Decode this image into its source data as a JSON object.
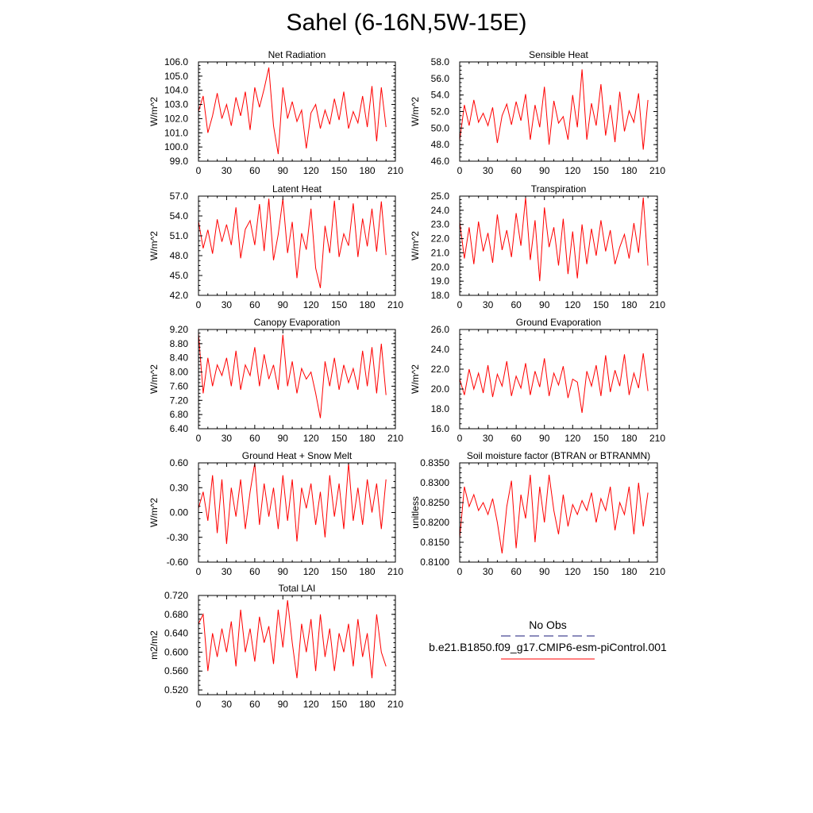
{
  "title": "Sahel (6-16N,5W-15E)",
  "chart_data": [
    {
      "type": "line",
      "title": "Net Radiation",
      "ylabel": "W/m^2",
      "xlim": [
        0,
        210
      ],
      "ylim": [
        99.0,
        106.0
      ],
      "xticks": [
        "0",
        "30",
        "60",
        "90",
        "120",
        "150",
        "180",
        "210"
      ],
      "yticks": [
        "99.0",
        "100.0",
        "101.0",
        "102.0",
        "103.0",
        "104.0",
        "105.0",
        "106.0"
      ],
      "series": [
        {
          "name": "b.e21.B1850.f09_g17.CMIP6-esm-piControl.001",
          "color": "#ff0000",
          "x": [
            0,
            5,
            10,
            15,
            20,
            25,
            30,
            35,
            40,
            45,
            50,
            55,
            60,
            65,
            70,
            75,
            80,
            85,
            90,
            95,
            100,
            105,
            110,
            115,
            120,
            125,
            130,
            135,
            140,
            145,
            150,
            155,
            160,
            165,
            170,
            175,
            180,
            185,
            190,
            195,
            200
          ],
          "values": [
            102.5,
            103.6,
            101.0,
            102.2,
            103.8,
            102.0,
            103.0,
            101.5,
            103.5,
            102.2,
            103.9,
            101.2,
            104.2,
            102.8,
            104.1,
            105.6,
            101.5,
            99.5,
            104.2,
            102.0,
            103.2,
            101.8,
            102.6,
            99.9,
            102.4,
            103.0,
            101.3,
            102.6,
            101.6,
            103.4,
            101.9,
            103.9,
            101.3,
            102.5,
            101.7,
            103.6,
            101.4,
            104.3,
            100.4,
            104.2,
            101.4
          ]
        }
      ]
    },
    {
      "type": "line",
      "title": "Sensible Heat",
      "ylabel": "W/m^2",
      "xlim": [
        0,
        210
      ],
      "ylim": [
        46.0,
        58.0
      ],
      "xticks": [
        "0",
        "30",
        "60",
        "90",
        "120",
        "150",
        "180",
        "210"
      ],
      "yticks": [
        "46.0",
        "48.0",
        "50.0",
        "52.0",
        "54.0",
        "56.0",
        "58.0"
      ],
      "series": [
        {
          "name": "b.e21.B1850.f09_g17.CMIP6-esm-piControl.001",
          "color": "#ff0000",
          "x": [
            0,
            5,
            10,
            15,
            20,
            25,
            30,
            35,
            40,
            45,
            50,
            55,
            60,
            65,
            70,
            75,
            80,
            85,
            90,
            95,
            100,
            105,
            110,
            115,
            120,
            125,
            130,
            135,
            140,
            145,
            150,
            155,
            160,
            165,
            170,
            175,
            180,
            185,
            190,
            195,
            200
          ],
          "values": [
            48.5,
            52.8,
            50.3,
            53.4,
            50.7,
            51.8,
            50.3,
            52.5,
            48.2,
            51.5,
            52.9,
            50.4,
            53.2,
            50.9,
            54.1,
            48.6,
            52.8,
            50.1,
            55.0,
            48.0,
            53.3,
            50.6,
            51.4,
            48.6,
            54.0,
            50.1,
            57.1,
            48.6,
            53.0,
            50.3,
            55.3,
            49.1,
            52.8,
            48.3,
            54.4,
            49.6,
            52.1,
            50.7,
            54.2,
            47.4,
            53.4
          ]
        }
      ]
    },
    {
      "type": "line",
      "title": "Latent Heat",
      "ylabel": "W/m^2",
      "xlim": [
        0,
        210
      ],
      "ylim": [
        42.0,
        57.0
      ],
      "xticks": [
        "0",
        "30",
        "60",
        "90",
        "120",
        "150",
        "180",
        "210"
      ],
      "yticks": [
        "42.0",
        "45.0",
        "48.0",
        "51.0",
        "54.0",
        "57.0"
      ],
      "series": [
        {
          "name": "b.e21.B1850.f09_g17.CMIP6-esm-piControl.001",
          "color": "#ff0000",
          "x": [
            0,
            5,
            10,
            15,
            20,
            25,
            30,
            35,
            40,
            45,
            50,
            55,
            60,
            65,
            70,
            75,
            80,
            85,
            90,
            95,
            100,
            105,
            110,
            115,
            120,
            125,
            130,
            135,
            140,
            145,
            150,
            155,
            160,
            165,
            170,
            175,
            180,
            185,
            190,
            195,
            200
          ],
          "values": [
            53.2,
            49.1,
            51.9,
            48.3,
            53.5,
            50.1,
            52.7,
            49.6,
            55.3,
            47.6,
            52.0,
            53.3,
            49.6,
            55.8,
            48.7,
            56.6,
            47.3,
            51.2,
            56.6,
            48.4,
            53.1,
            44.6,
            51.4,
            48.9,
            55.1,
            46.1,
            43.1,
            52.5,
            48.4,
            56.3,
            47.8,
            51.3,
            49.5,
            55.9,
            47.8,
            53.6,
            49.4,
            55.1,
            48.6,
            56.2,
            48.1
          ]
        }
      ]
    },
    {
      "type": "line",
      "title": "Transpiration",
      "ylabel": "W/m^2",
      "xlim": [
        0,
        210
      ],
      "ylim": [
        18.0,
        25.0
      ],
      "xticks": [
        "0",
        "30",
        "60",
        "90",
        "120",
        "150",
        "180",
        "210"
      ],
      "yticks": [
        "18.0",
        "19.0",
        "20.0",
        "21.0",
        "22.0",
        "23.0",
        "24.0",
        "25.0"
      ],
      "series": [
        {
          "name": "b.e21.B1850.f09_g17.CMIP6-esm-piControl.001",
          "color": "#ff0000",
          "x": [
            0,
            5,
            10,
            15,
            20,
            25,
            30,
            35,
            40,
            45,
            50,
            55,
            60,
            65,
            70,
            75,
            80,
            85,
            90,
            95,
            100,
            105,
            110,
            115,
            120,
            125,
            130,
            135,
            140,
            145,
            150,
            155,
            160,
            165,
            170,
            175,
            180,
            185,
            190,
            195,
            200
          ],
          "values": [
            23.2,
            20.6,
            22.8,
            20.2,
            23.2,
            21.1,
            22.4,
            20.3,
            23.7,
            21.2,
            22.6,
            20.7,
            23.8,
            21.5,
            24.9,
            20.5,
            23.3,
            19.0,
            24.2,
            21.4,
            22.8,
            20.1,
            23.4,
            19.5,
            22.5,
            19.2,
            23.0,
            20.2,
            22.7,
            20.8,
            23.3,
            21.1,
            22.6,
            20.2,
            21.4,
            22.3,
            20.6,
            23.1,
            21.0,
            24.9,
            20.1
          ]
        }
      ]
    },
    {
      "type": "line",
      "title": "Canopy Evaporation",
      "ylabel": "W/m^2",
      "xlim": [
        0,
        210
      ],
      "ylim": [
        6.4,
        9.2
      ],
      "xticks": [
        "0",
        "30",
        "60",
        "90",
        "120",
        "150",
        "180",
        "210"
      ],
      "yticks": [
        "6.40",
        "6.80",
        "7.20",
        "7.60",
        "8.00",
        "8.40",
        "8.80",
        "9.20"
      ],
      "series": [
        {
          "name": "b.e21.B1850.f09_g17.CMIP6-esm-piControl.001",
          "color": "#ff0000",
          "x": [
            0,
            5,
            10,
            15,
            20,
            25,
            30,
            35,
            40,
            45,
            50,
            55,
            60,
            65,
            70,
            75,
            80,
            85,
            90,
            95,
            100,
            105,
            110,
            115,
            120,
            125,
            130,
            135,
            140,
            145,
            150,
            155,
            160,
            165,
            170,
            175,
            180,
            185,
            190,
            195,
            200
          ],
          "values": [
            9.1,
            7.4,
            8.4,
            7.6,
            8.2,
            7.9,
            8.4,
            7.6,
            8.6,
            7.5,
            8.2,
            7.9,
            8.7,
            7.6,
            8.5,
            7.8,
            8.2,
            7.5,
            9.05,
            7.6,
            8.3,
            7.4,
            8.1,
            7.8,
            8.0,
            7.4,
            6.7,
            8.3,
            7.6,
            8.4,
            7.5,
            8.2,
            7.7,
            8.1,
            7.5,
            8.6,
            7.6,
            8.7,
            7.4,
            8.8,
            7.35
          ]
        }
      ]
    },
    {
      "type": "line",
      "title": "Ground Evaporation",
      "ylabel": "W/m^2",
      "xlim": [
        0,
        210
      ],
      "ylim": [
        16.0,
        26.0
      ],
      "xticks": [
        "0",
        "30",
        "60",
        "90",
        "120",
        "150",
        "180",
        "210"
      ],
      "yticks": [
        "16.0",
        "18.0",
        "20.0",
        "22.0",
        "24.0",
        "26.0"
      ],
      "series": [
        {
          "name": "b.e21.B1850.f09_g17.CMIP6-esm-piControl.001",
          "color": "#ff0000",
          "x": [
            0,
            5,
            10,
            15,
            20,
            25,
            30,
            35,
            40,
            45,
            50,
            55,
            60,
            65,
            70,
            75,
            80,
            85,
            90,
            95,
            100,
            105,
            110,
            115,
            120,
            125,
            130,
            135,
            140,
            145,
            150,
            155,
            160,
            165,
            170,
            175,
            180,
            185,
            190,
            195,
            200
          ],
          "values": [
            21.0,
            19.4,
            22.0,
            20.0,
            21.6,
            19.6,
            22.4,
            19.2,
            21.5,
            20.3,
            22.8,
            19.3,
            21.3,
            20.1,
            22.6,
            19.4,
            21.8,
            20.2,
            23.1,
            19.3,
            21.6,
            20.4,
            22.3,
            19.1,
            21.0,
            20.7,
            17.6,
            21.8,
            20.3,
            22.4,
            19.3,
            23.4,
            19.7,
            21.9,
            20.3,
            23.5,
            19.4,
            21.6,
            20.1,
            23.6,
            19.8
          ]
        }
      ]
    },
    {
      "type": "line",
      "title": "Ground Heat + Snow Melt",
      "ylabel": "W/m^2",
      "xlim": [
        0,
        210
      ],
      "ylim": [
        -0.6,
        0.6
      ],
      "xticks": [
        "0",
        "30",
        "60",
        "90",
        "120",
        "150",
        "180",
        "210"
      ],
      "yticks": [
        "-0.60",
        "-0.30",
        "0.00",
        "0.30",
        "0.60"
      ],
      "series": [
        {
          "name": "b.e21.B1850.f09_g17.CMIP6-esm-piControl.001",
          "color": "#ff0000",
          "x": [
            0,
            5,
            10,
            15,
            20,
            25,
            30,
            35,
            40,
            45,
            50,
            55,
            60,
            65,
            70,
            75,
            80,
            85,
            90,
            95,
            100,
            105,
            110,
            115,
            120,
            125,
            130,
            135,
            140,
            145,
            150,
            155,
            160,
            165,
            170,
            175,
            180,
            185,
            190,
            195,
            200
          ],
          "values": [
            0.05,
            0.25,
            -0.1,
            0.45,
            -0.25,
            0.4,
            -0.38,
            0.3,
            -0.05,
            0.4,
            -0.2,
            0.25,
            0.6,
            -0.15,
            0.35,
            -0.05,
            0.3,
            -0.2,
            0.45,
            -0.1,
            0.4,
            -0.35,
            0.3,
            0.05,
            0.35,
            -0.15,
            0.25,
            -0.3,
            0.45,
            -0.05,
            0.35,
            -0.2,
            0.6,
            -0.1,
            0.3,
            -0.15,
            0.4,
            0.0,
            0.35,
            -0.2,
            0.4
          ]
        }
      ]
    },
    {
      "type": "line",
      "title": "Soil moisture factor (BTRAN or BTRANMN)",
      "ylabel": "unitless",
      "xlim": [
        0,
        210
      ],
      "ylim": [
        0.81,
        0.835
      ],
      "xticks": [
        "0",
        "30",
        "60",
        "90",
        "120",
        "150",
        "180",
        "210"
      ],
      "yticks": [
        "0.8100",
        "0.8150",
        "0.8200",
        "0.8250",
        "0.8300",
        "0.8350"
      ],
      "series": [
        {
          "name": "b.e21.B1850.f09_g17.CMIP6-esm-piControl.001",
          "color": "#ff0000",
          "x": [
            0,
            5,
            10,
            15,
            20,
            25,
            30,
            35,
            40,
            45,
            50,
            55,
            60,
            65,
            70,
            75,
            80,
            85,
            90,
            95,
            100,
            105,
            110,
            115,
            120,
            125,
            130,
            135,
            140,
            145,
            150,
            155,
            160,
            165,
            170,
            175,
            180,
            185,
            190,
            195,
            200
          ],
          "values": [
            0.816,
            0.829,
            0.824,
            0.827,
            0.823,
            0.825,
            0.822,
            0.826,
            0.82,
            0.8122,
            0.824,
            0.8305,
            0.8135,
            0.827,
            0.821,
            0.832,
            0.815,
            0.829,
            0.82,
            0.832,
            0.823,
            0.817,
            0.827,
            0.819,
            0.8245,
            0.822,
            0.8255,
            0.823,
            0.8275,
            0.82,
            0.826,
            0.823,
            0.829,
            0.818,
            0.825,
            0.822,
            0.829,
            0.817,
            0.83,
            0.819,
            0.8275
          ]
        }
      ]
    },
    {
      "type": "line",
      "title": "Total LAI",
      "ylabel": "m2/m2",
      "xlim": [
        0,
        210
      ],
      "ylim": [
        0.51,
        0.72
      ],
      "xticks": [
        "0",
        "30",
        "60",
        "90",
        "120",
        "150",
        "180",
        "210"
      ],
      "yticks": [
        "0.520",
        "0.560",
        "0.600",
        "0.640",
        "0.680",
        "0.720"
      ],
      "series": [
        {
          "name": "b.e21.B1850.f09_g17.CMIP6-esm-piControl.001",
          "color": "#ff0000",
          "x": [
            0,
            5,
            10,
            15,
            20,
            25,
            30,
            35,
            40,
            45,
            50,
            55,
            60,
            65,
            70,
            75,
            80,
            85,
            90,
            95,
            100,
            105,
            110,
            115,
            120,
            125,
            130,
            135,
            140,
            145,
            150,
            155,
            160,
            165,
            170,
            175,
            180,
            185,
            190,
            195,
            200
          ],
          "values": [
            0.66,
            0.68,
            0.56,
            0.64,
            0.59,
            0.65,
            0.6,
            0.665,
            0.57,
            0.69,
            0.6,
            0.65,
            0.58,
            0.675,
            0.62,
            0.655,
            0.575,
            0.69,
            0.61,
            0.71,
            0.62,
            0.545,
            0.66,
            0.6,
            0.67,
            0.56,
            0.68,
            0.59,
            0.65,
            0.56,
            0.64,
            0.6,
            0.66,
            0.57,
            0.67,
            0.59,
            0.64,
            0.545,
            0.68,
            0.6,
            0.57
          ]
        }
      ]
    }
  ],
  "legend": {
    "obs_label": "No Obs",
    "obs_color": "#1a1a7a",
    "model_label": "b.e21.B1850.f09_g17.CMIP6-esm-piControl.001",
    "model_color": "#ff0000"
  }
}
